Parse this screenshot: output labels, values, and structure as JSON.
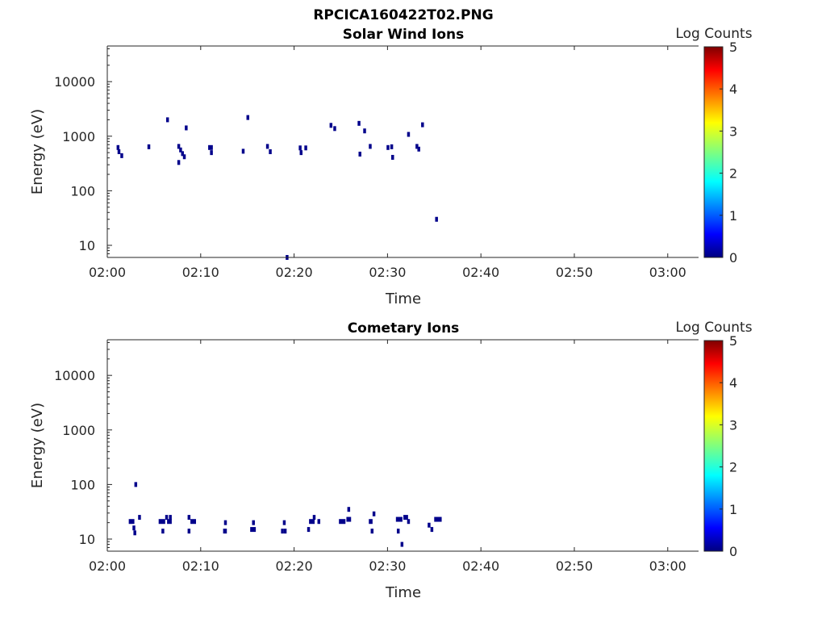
{
  "figure_title": "RPCICA160422T02.PNG",
  "colors": {
    "colormap": [
      "#00007f",
      "#0000ff",
      "#007fff",
      "#00ffff",
      "#7fff7f",
      "#ffff00",
      "#ff7f00",
      "#ff0000",
      "#7f0000"
    ],
    "event": "#00008b",
    "axis": "#262626"
  },
  "chart_data": [
    {
      "type": "heatmap",
      "title": "Solar Wind Ions",
      "xlabel": "Time",
      "ylabel": "Energy (eV)",
      "x_ticks": [
        "02:00",
        "02:10",
        "02:20",
        "02:30",
        "02:40",
        "02:50",
        "03:00"
      ],
      "y_ticks": [
        "10",
        "100",
        "1000",
        "10000"
      ],
      "y_scale": "log",
      "xlim_minutes": [
        0,
        63.3
      ],
      "ylim": [
        6,
        45000
      ],
      "colorbar": {
        "label": "Log Counts",
        "ticks": [
          "0",
          "1",
          "2",
          "3",
          "4",
          "5"
        ],
        "range": [
          0,
          5
        ]
      },
      "events": [
        [
          1.0,
          620,
          0.3
        ],
        [
          1.1,
          520,
          0.3
        ],
        [
          1.4,
          440,
          0.3
        ],
        [
          4.3,
          640,
          0.3
        ],
        [
          6.3,
          2000,
          0.3
        ],
        [
          7.5,
          650,
          0.3
        ],
        [
          7.7,
          560,
          0.3
        ],
        [
          7.9,
          480,
          0.3
        ],
        [
          7.5,
          330,
          0.3
        ],
        [
          8.1,
          420,
          0.3
        ],
        [
          8.3,
          1420,
          0.3
        ],
        [
          10.8,
          620,
          0.5
        ],
        [
          11.0,
          500,
          0.3
        ],
        [
          14.4,
          530,
          0.3
        ],
        [
          14.9,
          2200,
          0.3
        ],
        [
          17.0,
          650,
          0.3
        ],
        [
          17.3,
          520,
          0.3
        ],
        [
          19.1,
          6,
          0.3
        ],
        [
          20.5,
          610,
          0.3
        ],
        [
          20.6,
          500,
          0.3
        ],
        [
          21.1,
          610,
          0.3
        ],
        [
          23.8,
          1580,
          0.3
        ],
        [
          24.2,
          1380,
          0.3
        ],
        [
          26.8,
          1720,
          0.3
        ],
        [
          26.9,
          470,
          0.3
        ],
        [
          27.4,
          1250,
          0.3
        ],
        [
          28.0,
          650,
          0.3
        ],
        [
          29.9,
          620,
          0.3
        ],
        [
          30.3,
          640,
          0.3
        ],
        [
          30.4,
          410,
          0.3
        ],
        [
          32.1,
          1080,
          0.3
        ],
        [
          33.0,
          650,
          0.3
        ],
        [
          33.2,
          580,
          0.3
        ],
        [
          33.6,
          1620,
          0.3
        ],
        [
          35.1,
          30,
          0.3
        ]
      ]
    },
    {
      "type": "heatmap",
      "title": "Cometary Ions",
      "xlabel": "Time",
      "ylabel": "Energy (eV)",
      "x_ticks": [
        "02:00",
        "02:10",
        "02:20",
        "02:30",
        "02:40",
        "02:50",
        "03:00"
      ],
      "y_ticks": [
        "10",
        "100",
        "1000",
        "10000"
      ],
      "y_scale": "log",
      "xlim_minutes": [
        0,
        63.3
      ],
      "ylim": [
        6,
        45000
      ],
      "colorbar": {
        "label": "Log Counts",
        "ticks": [
          "0",
          "1",
          "2",
          "3",
          "4",
          "5"
        ],
        "range": [
          0,
          5
        ]
      },
      "events": [
        [
          2.3,
          21,
          0.6
        ],
        [
          2.7,
          16,
          0.3
        ],
        [
          2.8,
          13,
          0.3
        ],
        [
          2.9,
          100,
          0.3
        ],
        [
          3.3,
          25,
          0.3
        ],
        [
          5.5,
          21,
          0.7
        ],
        [
          5.8,
          14,
          0.3
        ],
        [
          6.2,
          25,
          0.3
        ],
        [
          6.4,
          21,
          0.5
        ],
        [
          6.6,
          25,
          0.3
        ],
        [
          8.6,
          25,
          0.3
        ],
        [
          8.6,
          14,
          0.3
        ],
        [
          8.9,
          21,
          0.6
        ],
        [
          12.4,
          14,
          0.4
        ],
        [
          12.5,
          20,
          0.3
        ],
        [
          15.3,
          15,
          0.6
        ],
        [
          15.5,
          20,
          0.3
        ],
        [
          18.6,
          14,
          0.3
        ],
        [
          18.8,
          20,
          0.3
        ],
        [
          18.9,
          14,
          0.3
        ],
        [
          21.4,
          15,
          0.3
        ],
        [
          21.6,
          21,
          0.6
        ],
        [
          22.0,
          25,
          0.3
        ],
        [
          22.5,
          21,
          0.3
        ],
        [
          24.8,
          21,
          0.7
        ],
        [
          25.6,
          23,
          0.5
        ],
        [
          25.7,
          35,
          0.3
        ],
        [
          28.0,
          21,
          0.4
        ],
        [
          28.2,
          14,
          0.3
        ],
        [
          28.4,
          29,
          0.3
        ],
        [
          30.9,
          23,
          0.7
        ],
        [
          31.0,
          14,
          0.3
        ],
        [
          31.4,
          8,
          0.3
        ],
        [
          31.7,
          25,
          0.5
        ],
        [
          32.1,
          21,
          0.3
        ],
        [
          34.3,
          18,
          0.3
        ],
        [
          34.6,
          15,
          0.3
        ],
        [
          35.0,
          23,
          0.8
        ]
      ]
    }
  ]
}
